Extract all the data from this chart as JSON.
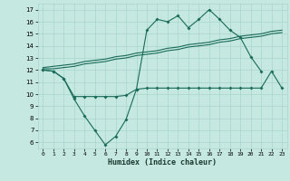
{
  "xlabel": "Humidex (Indice chaleur)",
  "bg_color": "#c5e8e0",
  "grid_color": "#a8d4cc",
  "line_color": "#1a6b5a",
  "xlim": [
    -0.5,
    23.5
  ],
  "ylim": [
    5.5,
    17.5
  ],
  "xticks": [
    0,
    1,
    2,
    3,
    4,
    5,
    6,
    7,
    8,
    9,
    10,
    11,
    12,
    13,
    14,
    15,
    16,
    17,
    18,
    19,
    20,
    21,
    22,
    23
  ],
  "yticks": [
    6,
    7,
    8,
    9,
    10,
    11,
    12,
    13,
    14,
    15,
    16,
    17
  ],
  "line_spiky_x": [
    0,
    1,
    2,
    3,
    4,
    5,
    6,
    7,
    8,
    9,
    10,
    11,
    12,
    13,
    14,
    15,
    16,
    17,
    18,
    19,
    20,
    21
  ],
  "line_spiky_y": [
    12.0,
    11.9,
    11.3,
    9.6,
    8.2,
    7.0,
    5.8,
    6.5,
    7.9,
    10.4,
    15.3,
    16.2,
    16.0,
    16.5,
    15.5,
    16.2,
    17.0,
    16.2,
    15.3,
    14.7,
    13.1,
    11.9
  ],
  "line_low_x": [
    0,
    1,
    2,
    3,
    4,
    5,
    6,
    7,
    8,
    9,
    10,
    11,
    12,
    13,
    14,
    15,
    16,
    17,
    18,
    19,
    20,
    21,
    22,
    23
  ],
  "line_low_y": [
    12.0,
    11.9,
    11.3,
    9.8,
    9.8,
    9.8,
    9.8,
    9.8,
    9.9,
    10.4,
    10.5,
    10.5,
    10.5,
    10.5,
    10.5,
    10.5,
    10.5,
    10.5,
    10.5,
    10.5,
    10.5,
    10.5,
    11.9,
    10.5
  ],
  "line_reg1_x": [
    0,
    1,
    2,
    3,
    4,
    5,
    6,
    7,
    8,
    9,
    10,
    11,
    12,
    13,
    14,
    15,
    16,
    17,
    18,
    19,
    20,
    21,
    22,
    23
  ],
  "line_reg1_y": [
    12.1,
    12.1,
    12.2,
    12.3,
    12.5,
    12.6,
    12.7,
    12.9,
    13.0,
    13.2,
    13.3,
    13.4,
    13.6,
    13.7,
    13.9,
    14.0,
    14.1,
    14.3,
    14.4,
    14.6,
    14.7,
    14.8,
    15.0,
    15.1
  ],
  "line_reg2_x": [
    0,
    1,
    2,
    3,
    4,
    5,
    6,
    7,
    8,
    9,
    10,
    11,
    12,
    13,
    14,
    15,
    16,
    17,
    18,
    19,
    20,
    21,
    22,
    23
  ],
  "line_reg2_y": [
    12.2,
    12.3,
    12.4,
    12.5,
    12.7,
    12.8,
    12.9,
    13.1,
    13.2,
    13.4,
    13.5,
    13.6,
    13.8,
    13.9,
    14.1,
    14.2,
    14.3,
    14.5,
    14.6,
    14.8,
    14.9,
    15.0,
    15.2,
    15.3
  ]
}
